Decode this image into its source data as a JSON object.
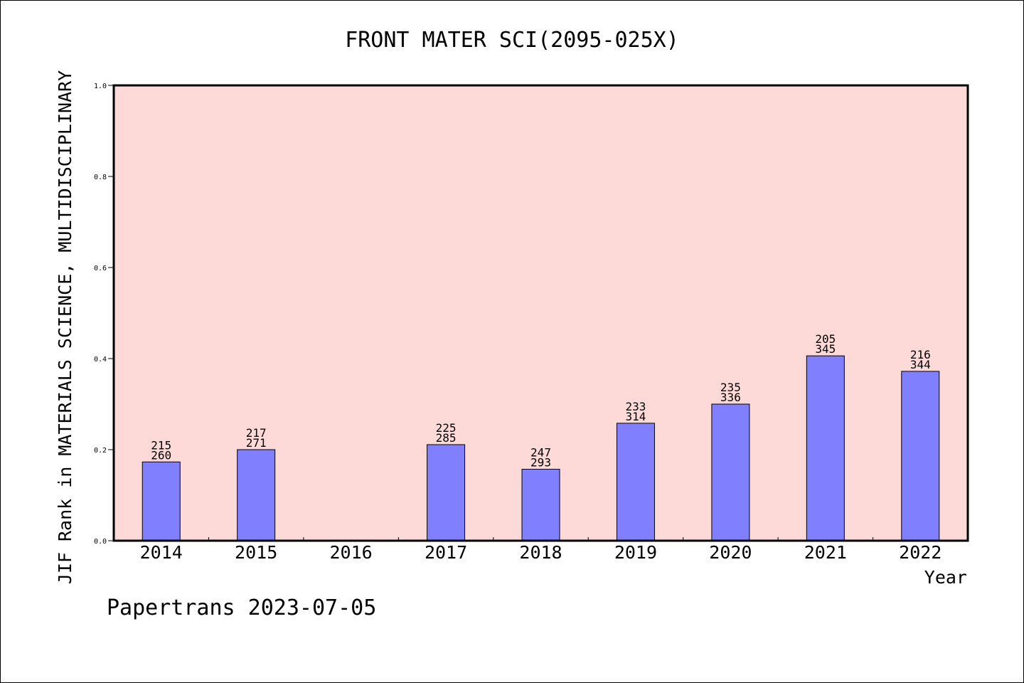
{
  "chart_data": {
    "type": "bar",
    "title": "FRONT MATER SCI(2095-025X)",
    "xlabel": "Year",
    "ylabel": "JIF Rank in MATERIALS SCIENCE, MULTIDISCIPLINARY",
    "footer": "Papertrans 2023-07-05",
    "categories": [
      "2014",
      "2015",
      "2016",
      "2017",
      "2018",
      "2019",
      "2020",
      "2021",
      "2022"
    ],
    "values": [
      0.173,
      0.2,
      null,
      0.211,
      0.157,
      0.258,
      0.3,
      0.406,
      0.372
    ],
    "rank": [
      "215",
      "217",
      "",
      "225",
      "247",
      "233",
      "235",
      "205",
      "216"
    ],
    "total": [
      "260",
      "271",
      "",
      "285",
      "293",
      "314",
      "336",
      "345",
      "344"
    ],
    "ylim": [
      0,
      1.0
    ],
    "yticks": [
      "0.0",
      "0.2",
      "0.4",
      "0.6",
      "0.8",
      "1.0"
    ],
    "grid": false,
    "colors": {
      "plot_background": "#fddad7",
      "bar_fill": "#8080ff",
      "bar_stroke": "#000000"
    }
  }
}
